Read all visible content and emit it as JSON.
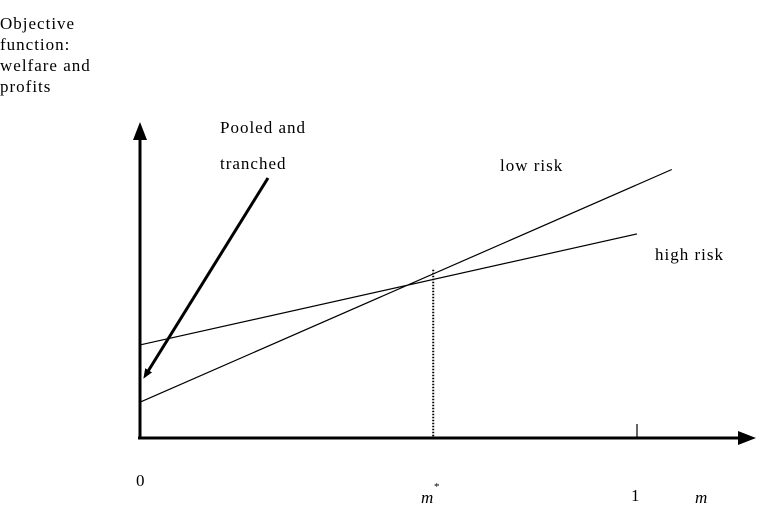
{
  "chart_data": {
    "type": "line",
    "ylabel_lines": [
      "Objective",
      "function:",
      "welfare and",
      "profits"
    ],
    "xlabel": "m",
    "x_ticks": [
      {
        "value": 0,
        "label": "0"
      },
      {
        "value": 0.59,
        "label": "m",
        "superscript": "*"
      },
      {
        "value": 1,
        "label": "1"
      }
    ],
    "series": [
      {
        "name": "low risk",
        "points": [
          [
            0,
            0.2
          ],
          [
            1.07,
            1.5
          ]
        ]
      },
      {
        "name": "high risk",
        "points": [
          [
            0,
            0.52
          ],
          [
            1.0,
            1.14
          ]
        ]
      }
    ],
    "annotation": {
      "lines": [
        "Pooled and",
        "tranched"
      ],
      "points_to": [
        0,
        0.31
      ]
    },
    "crossing": {
      "x": 0.59,
      "y": 0.94
    },
    "xlim": [
      0,
      1.22
    ],
    "ylim": [
      0,
      1.77
    ]
  }
}
